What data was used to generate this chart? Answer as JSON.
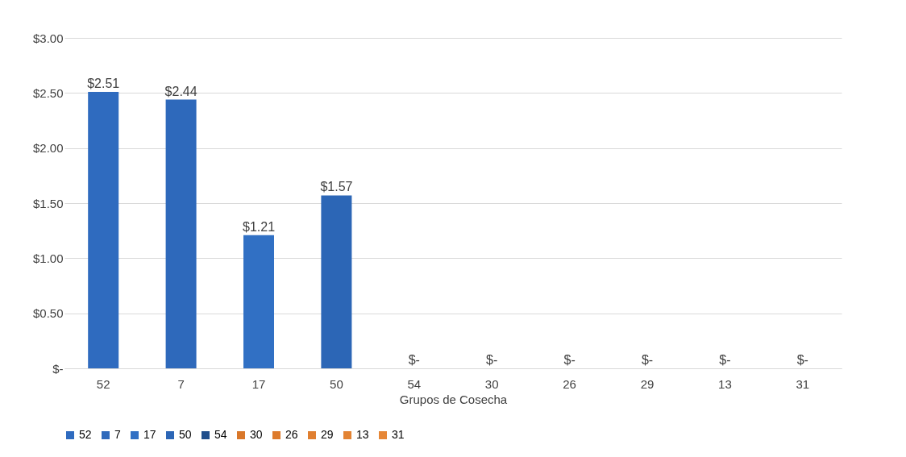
{
  "chart_data": {
    "type": "bar",
    "xlabel": "Grupos de Cosecha",
    "categories": [
      "52",
      "7",
      "17",
      "50",
      "54",
      "30",
      "26",
      "29",
      "13",
      "31"
    ],
    "series": [
      {
        "name": "52",
        "color": "#2f6bbf",
        "values": [
          2.51,
          null,
          null,
          null,
          null,
          null,
          null,
          null,
          null,
          null
        ]
      },
      {
        "name": "7",
        "color": "#2e69bb",
        "values": [
          null,
          2.44,
          null,
          null,
          null,
          null,
          null,
          null,
          null,
          null
        ]
      },
      {
        "name": "17",
        "color": "#3170c4",
        "values": [
          null,
          null,
          1.21,
          null,
          null,
          null,
          null,
          null,
          null,
          null
        ]
      },
      {
        "name": "50",
        "color": "#2c66b6",
        "values": [
          null,
          null,
          null,
          1.57,
          null,
          null,
          null,
          null,
          null,
          null
        ]
      },
      {
        "name": "54",
        "color": "#1f4e8c",
        "values": [
          null,
          null,
          null,
          null,
          0,
          null,
          null,
          null,
          null,
          null
        ]
      },
      {
        "name": "30",
        "color": "#d9772a",
        "values": [
          null,
          null,
          null,
          null,
          null,
          0,
          null,
          null,
          null,
          null
        ]
      },
      {
        "name": "26",
        "color": "#dd7b2c",
        "values": [
          null,
          null,
          null,
          null,
          null,
          null,
          0,
          null,
          null,
          null
        ]
      },
      {
        "name": "29",
        "color": "#e07f30",
        "values": [
          null,
          null,
          null,
          null,
          null,
          null,
          null,
          0,
          null,
          null
        ]
      },
      {
        "name": "13",
        "color": "#e38333",
        "values": [
          null,
          null,
          null,
          null,
          null,
          null,
          null,
          null,
          0,
          null
        ]
      },
      {
        "name": "31",
        "color": "#e68737",
        "values": [
          null,
          null,
          null,
          null,
          null,
          null,
          null,
          null,
          null,
          0
        ]
      }
    ],
    "value_labels": [
      "$2.51",
      "$2.44",
      "$1.21",
      "$1.57",
      "$-",
      "$-",
      "$-",
      "$-",
      "$-",
      "$-"
    ],
    "ylim": [
      0,
      3
    ],
    "yticks": [
      {
        "value": 0,
        "label": "$-"
      },
      {
        "value": 0.5,
        "label": "$0.50"
      },
      {
        "value": 1,
        "label": "$1.00"
      },
      {
        "value": 1.5,
        "label": "$1.50"
      },
      {
        "value": 2,
        "label": "$2.00"
      },
      {
        "value": 2.5,
        "label": "$2.50"
      },
      {
        "value": 3,
        "label": "$3.00"
      }
    ],
    "grid": "y",
    "legend": "bottom"
  }
}
